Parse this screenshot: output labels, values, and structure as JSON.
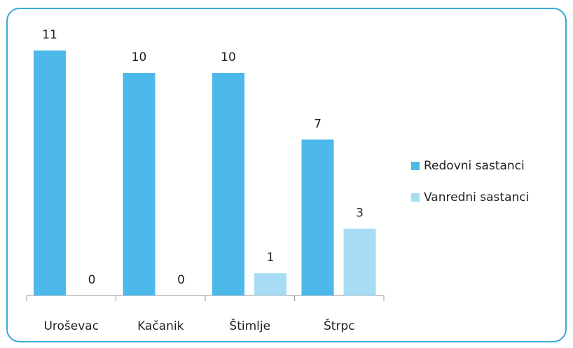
{
  "chart_data": {
    "type": "bar",
    "categories": [
      "Uroševac",
      "Kačanik",
      "Štimlje",
      "Štrpc"
    ],
    "series": [
      {
        "name": "Redovni sastanci",
        "color": "#4db8ea",
        "values": [
          11,
          10,
          10,
          7
        ]
      },
      {
        "name": "Vanredni sastanci",
        "color": "#a8dcf5",
        "values": [
          0,
          0,
          1,
          3
        ]
      }
    ],
    "ylim": [
      0,
      12
    ],
    "legend": "right"
  }
}
